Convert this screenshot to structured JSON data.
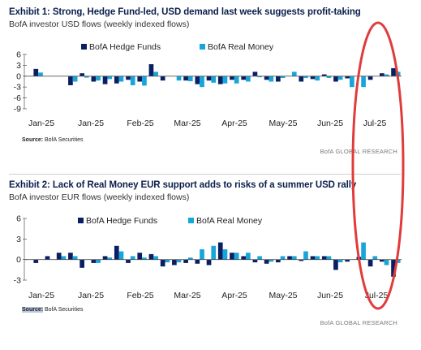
{
  "chart_data": [
    {
      "type": "bar",
      "title": "Exhibit 1: Strong, Hedge Fund-led, USD demand last week suggests profit-taking",
      "subtitle": "BofA investor USD flows (weekly indexed flows)",
      "source_label": "Source:",
      "source_text": "BofA Securities",
      "footer": "BofA GLOBAL RESEARCH",
      "ylim": [
        -9,
        6
      ],
      "yticks": [
        -9,
        -6,
        -3,
        0,
        3,
        6
      ],
      "x_tick_labels": [
        "Jan-25",
        "Jan-25",
        "Feb-25",
        "Mar-25",
        "Apr-25",
        "May-25",
        "Jun-25",
        "Jul-25"
      ],
      "legend_position": "top-center",
      "grid": false,
      "series": [
        {
          "name": "BofA Hedge Funds",
          "color": "#0a1f63",
          "values": [
            2.0,
            0,
            0,
            -2.5,
            0.8,
            -1.5,
            -2.2,
            -2.0,
            -1.0,
            -1.5,
            3.3,
            -1.2,
            0,
            -1.2,
            -2.2,
            -1.2,
            -2.2,
            -1.0,
            -1.0,
            1.2,
            -1.0,
            -1.5,
            0,
            -1.5,
            -0.8,
            0.5,
            -1.5,
            -0.6,
            0,
            -1.0,
            0.8,
            2.2
          ]
        },
        {
          "name": "BofA Real Money",
          "color": "#16a6d9",
          "values": [
            1.0,
            0,
            0,
            -1.5,
            -0.4,
            -1.2,
            -0.8,
            -1.5,
            -2.5,
            -2.6,
            1.2,
            0,
            -1.2,
            -1.4,
            -3.0,
            -1.8,
            -2.0,
            -2.0,
            -1.5,
            -0.3,
            -1.5,
            -0.5,
            1.2,
            -0.5,
            -1.2,
            -0.5,
            -1.0,
            -3.0,
            -3.0,
            0,
            0.5,
            1.2
          ]
        }
      ]
    },
    {
      "type": "bar",
      "title": "Exhibit 2: Lack of Real Money EUR support adds to risks of a summer USD rally",
      "subtitle": "BofA investor EUR flows (weekly indexed flows)",
      "source_label": "Source:",
      "source_text": "BofA Securities",
      "footer": "BofA GLOBAL RESEARCH",
      "ylim": [
        -3,
        6
      ],
      "yticks": [
        -3,
        0,
        3,
        6
      ],
      "x_tick_labels": [
        "Jan-25",
        "Jan-25",
        "Feb-25",
        "Mar-25",
        "Apr-25",
        "May-25",
        "Jun-25",
        "Jul-25"
      ],
      "legend_position": "top-center",
      "grid": false,
      "series": [
        {
          "name": "BofA Hedge Funds",
          "color": "#0a1f63",
          "values": [
            -0.5,
            0.5,
            1.0,
            1.0,
            -1.2,
            -0.5,
            0.5,
            2.0,
            -0.5,
            1.0,
            0.8,
            -1.0,
            -0.8,
            -0.5,
            -0.6,
            -0.8,
            2.5,
            1.0,
            0.5,
            -0.4,
            -0.6,
            -0.4,
            0.5,
            -0.2,
            0.5,
            0.5,
            -1.5,
            -0.3,
            0.4,
            -1.0,
            -0.3,
            -2.5
          ]
        },
        {
          "name": "BofA Real Money",
          "color": "#16a6d9",
          "values": [
            0,
            0,
            0.5,
            0.5,
            0,
            -0.5,
            0.3,
            1.2,
            0.5,
            0.3,
            0.5,
            -0.4,
            -0.4,
            0.3,
            1.5,
            2.0,
            1.5,
            1.0,
            1.0,
            0.5,
            -0.3,
            0.5,
            0.5,
            1.2,
            0.5,
            0.5,
            -0.4,
            0,
            2.5,
            0.5,
            -0.8,
            -0.5
          ]
        }
      ]
    }
  ],
  "annotation": {
    "shape": "ellipse",
    "color": "#e03c3c"
  }
}
